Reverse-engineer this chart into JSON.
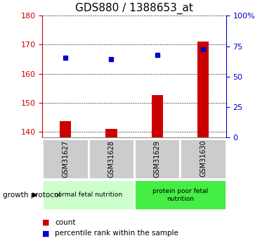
{
  "title": "GDS880 / 1388653_at",
  "samples": [
    "GSM31627",
    "GSM31628",
    "GSM31629",
    "GSM31630"
  ],
  "bar_values": [
    143.5,
    141.0,
    152.5,
    171.0
  ],
  "percentile_values": [
    165.5,
    165.0,
    166.5,
    168.5
  ],
  "ylim_left": [
    138,
    180
  ],
  "yticks_left": [
    140,
    150,
    160,
    170,
    180
  ],
  "ylim_right": [
    0,
    100
  ],
  "yticks_right": [
    0,
    25,
    50,
    75,
    100
  ],
  "bar_color": "#cc0000",
  "dot_color": "#0000cc",
  "bar_width": 0.25,
  "group_labels": [
    "normal fetal nutrition",
    "protein poor fetal\nnutrition"
  ],
  "group_label": "growth protocol",
  "legend_count_label": "count",
  "legend_pct_label": "percentile rank within the sample",
  "title_fontsize": 11,
  "tick_fontsize": 8,
  "axis_left_color": "#cc0000",
  "axis_right_color": "#0000cc",
  "background_xtick": "#cccccc",
  "background_group1": "#ccffcc",
  "background_group2": "#44ee44"
}
